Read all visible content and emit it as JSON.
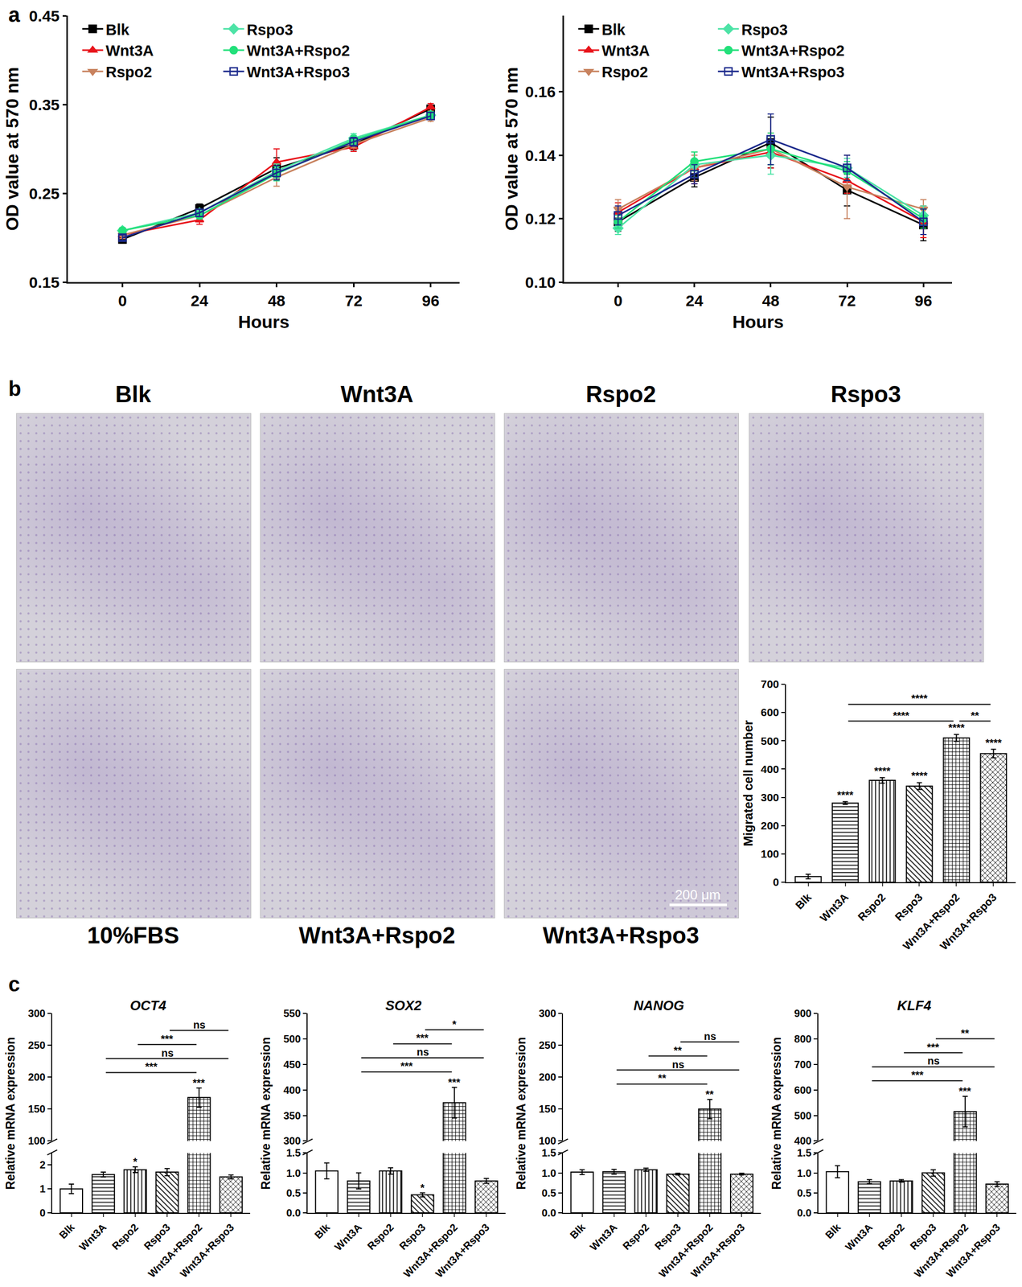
{
  "panel_labels": [
    "a",
    "b",
    "c"
  ],
  "micrograph_labels": [
    "Blk",
    "Wnt3A",
    "Rspo2",
    "Rspo3",
    "10%FBS",
    "Wnt3A+Rspo2",
    "Wnt3A+Rspo3"
  ],
  "scale_bar": "200 μm",
  "chart_data": [
    {
      "type": "line",
      "x": [
        0,
        24,
        48,
        72,
        96
      ],
      "xlabel": "Hours",
      "ylabel": "OD value at 570 nm",
      "xlim": [
        -17,
        105
      ],
      "xticks": [
        0,
        24,
        48,
        72,
        96
      ],
      "ylim": [
        0.15,
        0.45
      ],
      "yticks": [
        0.15,
        0.25,
        0.35,
        0.45
      ],
      "grid": false,
      "legend": "top left",
      "series": [
        {
          "name": "Blk",
          "color": "#000000",
          "marker": "square",
          "values": [
            0.198,
            0.233,
            0.278,
            0.305,
            0.345
          ],
          "errors": [
            0.004,
            0.005,
            0.012,
            0.006,
            0.004
          ]
        },
        {
          "name": "Wnt3A",
          "color": "#e8141b",
          "marker": "triangle-up",
          "values": [
            0.203,
            0.22,
            0.285,
            0.302,
            0.347
          ],
          "errors": [
            0.004,
            0.005,
            0.015,
            0.005,
            0.004
          ]
        },
        {
          "name": "Rspo2",
          "color": "#c8825e",
          "marker": "triangle-down",
          "values": [
            0.203,
            0.225,
            0.268,
            0.305,
            0.335
          ],
          "errors": [
            0.004,
            0.004,
            0.01,
            0.004,
            0.004
          ]
        },
        {
          "name": "Rspo3",
          "color": "#4de3a6",
          "marker": "diamond",
          "values": [
            0.208,
            0.228,
            0.275,
            0.312,
            0.338
          ],
          "errors": [
            0.003,
            0.004,
            0.008,
            0.005,
            0.004
          ]
        },
        {
          "name": "Wnt3A+Rspo2",
          "color": "#22e07a",
          "marker": "circle",
          "values": [
            0.208,
            0.225,
            0.272,
            0.31,
            0.338
          ],
          "errors": [
            0.003,
            0.004,
            0.008,
            0.005,
            0.004
          ]
        },
        {
          "name": "Wnt3A+Rspo3",
          "color": "#1c2a8c",
          "marker": "square-open",
          "values": [
            0.2,
            0.228,
            0.273,
            0.308,
            0.337
          ],
          "errors": [
            0.003,
            0.004,
            0.008,
            0.005,
            0.004
          ]
        }
      ]
    },
    {
      "type": "line",
      "x": [
        0,
        24,
        48,
        72,
        96
      ],
      "xlabel": "Hours",
      "ylabel": "OD value at 570 nm",
      "xlim": [
        -17,
        105
      ],
      "xticks": [
        0,
        24,
        48,
        72,
        96
      ],
      "ylim": [
        0.1,
        0.184
      ],
      "yticks": [
        {
          "value": 0.1,
          "label": "0.10"
        },
        0.12,
        0.14,
        0.16
      ],
      "grid": false,
      "legend": "top left",
      "series": [
        {
          "name": "Blk",
          "color": "#000000",
          "marker": "square",
          "values": [
            0.119,
            0.133,
            0.144,
            0.129,
            0.118
          ],
          "errors": [
            0.003,
            0.003,
            0.008,
            0.005,
            0.005
          ]
        },
        {
          "name": "Wnt3A",
          "color": "#e8141b",
          "marker": "triangle-up",
          "values": [
            0.122,
            0.136,
            0.141,
            0.132,
            0.119
          ],
          "errors": [
            0.003,
            0.005,
            0.005,
            0.004,
            0.005
          ]
        },
        {
          "name": "Rspo2",
          "color": "#c8825e",
          "marker": "triangle-down",
          "values": [
            0.123,
            0.136,
            0.142,
            0.13,
            0.123
          ],
          "errors": [
            0.003,
            0.004,
            0.005,
            0.01,
            0.003
          ]
        },
        {
          "name": "Rspo3",
          "color": "#4de3a6",
          "marker": "diamond",
          "values": [
            0.117,
            0.137,
            0.14,
            0.136,
            0.121
          ],
          "errors": [
            0.002,
            0.004,
            0.006,
            0.003,
            0.003
          ]
        },
        {
          "name": "Wnt3A+Rspo2",
          "color": "#22e07a",
          "marker": "circle",
          "values": [
            0.119,
            0.138,
            0.142,
            0.135,
            0.12
          ],
          "errors": [
            0.002,
            0.003,
            0.005,
            0.003,
            0.003
          ]
        },
        {
          "name": "Wnt3A+Rspo3",
          "color": "#1c2a8c",
          "marker": "square-open",
          "values": [
            0.121,
            0.134,
            0.145,
            0.136,
            0.119
          ],
          "errors": [
            0.003,
            0.003,
            0.008,
            0.004,
            0.004
          ]
        }
      ]
    },
    {
      "type": "bar",
      "ylabel": "Migrated cell number",
      "categories": [
        "Blk",
        "Wnt3A",
        "Rspo2",
        "Rspo3",
        "Wnt3A+Rspo2",
        "Wnt3A+Rspo3"
      ],
      "values": [
        20,
        280,
        360,
        340,
        510,
        455
      ],
      "errors": [
        8,
        5,
        10,
        12,
        12,
        15
      ],
      "bar_labels": [
        null,
        "****",
        "****",
        "****",
        "****",
        "****"
      ],
      "ylim": [
        0,
        700
      ],
      "yticks": [
        0,
        100,
        200,
        300,
        400,
        500,
        600,
        700
      ],
      "grid": false,
      "comparisons": [
        {
          "from": "Wnt3A",
          "to": "Wnt3A+Rspo2",
          "label": "****"
        },
        {
          "from": "Wnt3A+Rspo2",
          "to": "Wnt3A+Rspo3",
          "label": "**"
        },
        {
          "from": "Wnt3A",
          "to": "Wnt3A+Rspo3",
          "label": "****"
        }
      ]
    },
    {
      "type": "bar",
      "title": "OCT4",
      "ylabel": "Relative mRNA expression",
      "categories": [
        "Blk",
        "Wnt3A",
        "Rspo2",
        "Rspo3",
        "Wnt3A+Rspo2",
        "Wnt3A+Rspo3"
      ],
      "values": [
        1.0,
        1.6,
        1.8,
        1.7,
        168,
        1.5
      ],
      "errors": [
        0.2,
        0.1,
        0.12,
        0.15,
        15,
        0.08
      ],
      "bar_labels": [
        null,
        null,
        "*",
        null,
        "***",
        null
      ],
      "axes": [
        {
          "ylim": [
            0,
            2.5
          ],
          "yticks": [
            0,
            1,
            2
          ]
        },
        {
          "ylim": [
            100,
            300
          ],
          "yticks": [
            100,
            150,
            200,
            250,
            300
          ]
        }
      ],
      "grid": false,
      "comparisons": [
        {
          "from": "Wnt3A",
          "to": "Wnt3A+Rspo2",
          "label": "***"
        },
        {
          "from": "Wnt3A",
          "to": "Wnt3A+Rspo3",
          "label": "ns"
        },
        {
          "from": "Rspo2",
          "to": "Wnt3A+Rspo2",
          "label": "***"
        },
        {
          "from": "Rspo3",
          "to": "Wnt3A+Rspo3",
          "label": "ns"
        }
      ]
    },
    {
      "type": "bar",
      "title": "SOX2",
      "ylabel": "Relative mRNA expression",
      "categories": [
        "Blk",
        "Wnt3A",
        "Rspo2",
        "Rspo3",
        "Wnt3A+Rspo2",
        "Wnt3A+Rspo3"
      ],
      "values": [
        1.05,
        0.8,
        1.05,
        0.45,
        375,
        0.8
      ],
      "errors": [
        0.2,
        0.2,
        0.08,
        0.05,
        30,
        0.06
      ],
      "bar_labels": [
        null,
        null,
        null,
        "*",
        "***",
        null
      ],
      "axes": [
        {
          "ylim": [
            0,
            1.5
          ],
          "yticks": [
            {
              "value": 0,
              "label": "0.0"
            },
            0.5,
            {
              "value": 1,
              "label": "1.0"
            },
            1.5
          ]
        },
        {
          "ylim": [
            300,
            550
          ],
          "yticks": [
            300,
            350,
            400,
            450,
            500,
            550
          ]
        }
      ],
      "grid": false,
      "comparisons": [
        {
          "from": "Wnt3A",
          "to": "Wnt3A+Rspo2",
          "label": "***"
        },
        {
          "from": "Wnt3A",
          "to": "Wnt3A+Rspo3",
          "label": "ns"
        },
        {
          "from": "Rspo2",
          "to": "Wnt3A+Rspo2",
          "label": "***"
        },
        {
          "from": "Rspo3",
          "to": "Wnt3A+Rspo3",
          "label": "*"
        }
      ]
    },
    {
      "type": "bar",
      "title": "NANOG",
      "ylabel": "Relative mRNA expression",
      "categories": [
        "Blk",
        "Wnt3A",
        "Rspo2",
        "Rspo3",
        "Wnt3A+Rspo2",
        "Wnt3A+Rspo3"
      ],
      "values": [
        1.02,
        1.03,
        1.08,
        0.97,
        150,
        0.97
      ],
      "errors": [
        0.06,
        0.06,
        0.04,
        0.02,
        15,
        0.02
      ],
      "bar_labels": [
        null,
        null,
        null,
        null,
        "**",
        null
      ],
      "axes": [
        {
          "ylim": [
            0,
            1.5
          ],
          "yticks": [
            {
              "value": 0,
              "label": "0.0"
            },
            0.5,
            {
              "value": 1,
              "label": "1.0"
            },
            1.5
          ]
        },
        {
          "ylim": [
            100,
            300
          ],
          "yticks": [
            100,
            150,
            200,
            250,
            300
          ]
        }
      ],
      "grid": false,
      "comparisons": [
        {
          "from": "Wnt3A",
          "to": "Wnt3A+Rspo2",
          "label": "**"
        },
        {
          "from": "Wnt3A",
          "to": "Wnt3A+Rspo3",
          "label": "ns"
        },
        {
          "from": "Rspo2",
          "to": "Wnt3A+Rspo2",
          "label": "**"
        },
        {
          "from": "Rspo3",
          "to": "Wnt3A+Rspo3",
          "label": "ns"
        }
      ]
    },
    {
      "type": "bar",
      "title": "KLF4",
      "ylabel": "Relative mRNA expression",
      "categories": [
        "Blk",
        "Wnt3A",
        "Rspo2",
        "Rspo3",
        "Wnt3A+Rspo2",
        "Wnt3A+Rspo3"
      ],
      "values": [
        1.03,
        0.78,
        0.8,
        1.0,
        515,
        0.72
      ],
      "errors": [
        0.15,
        0.05,
        0.03,
        0.08,
        60,
        0.06
      ],
      "bar_labels": [
        null,
        null,
        null,
        null,
        "***",
        null
      ],
      "axes": [
        {
          "ylim": [
            0,
            1.5
          ],
          "yticks": [
            {
              "value": 0,
              "label": "0.0"
            },
            0.5,
            {
              "value": 1,
              "label": "1.0"
            },
            1.5
          ]
        },
        {
          "ylim": [
            400,
            900
          ],
          "yticks": [
            400,
            500,
            600,
            700,
            800,
            900
          ]
        }
      ],
      "grid": false,
      "comparisons": [
        {
          "from": "Wnt3A",
          "to": "Wnt3A+Rspo2",
          "label": "***"
        },
        {
          "from": "Wnt3A",
          "to": "Wnt3A+Rspo3",
          "label": "ns"
        },
        {
          "from": "Rspo2",
          "to": "Wnt3A+Rspo2",
          "label": "***"
        },
        {
          "from": "Rspo3",
          "to": "Wnt3A+Rspo3",
          "label": "**"
        }
      ]
    }
  ]
}
